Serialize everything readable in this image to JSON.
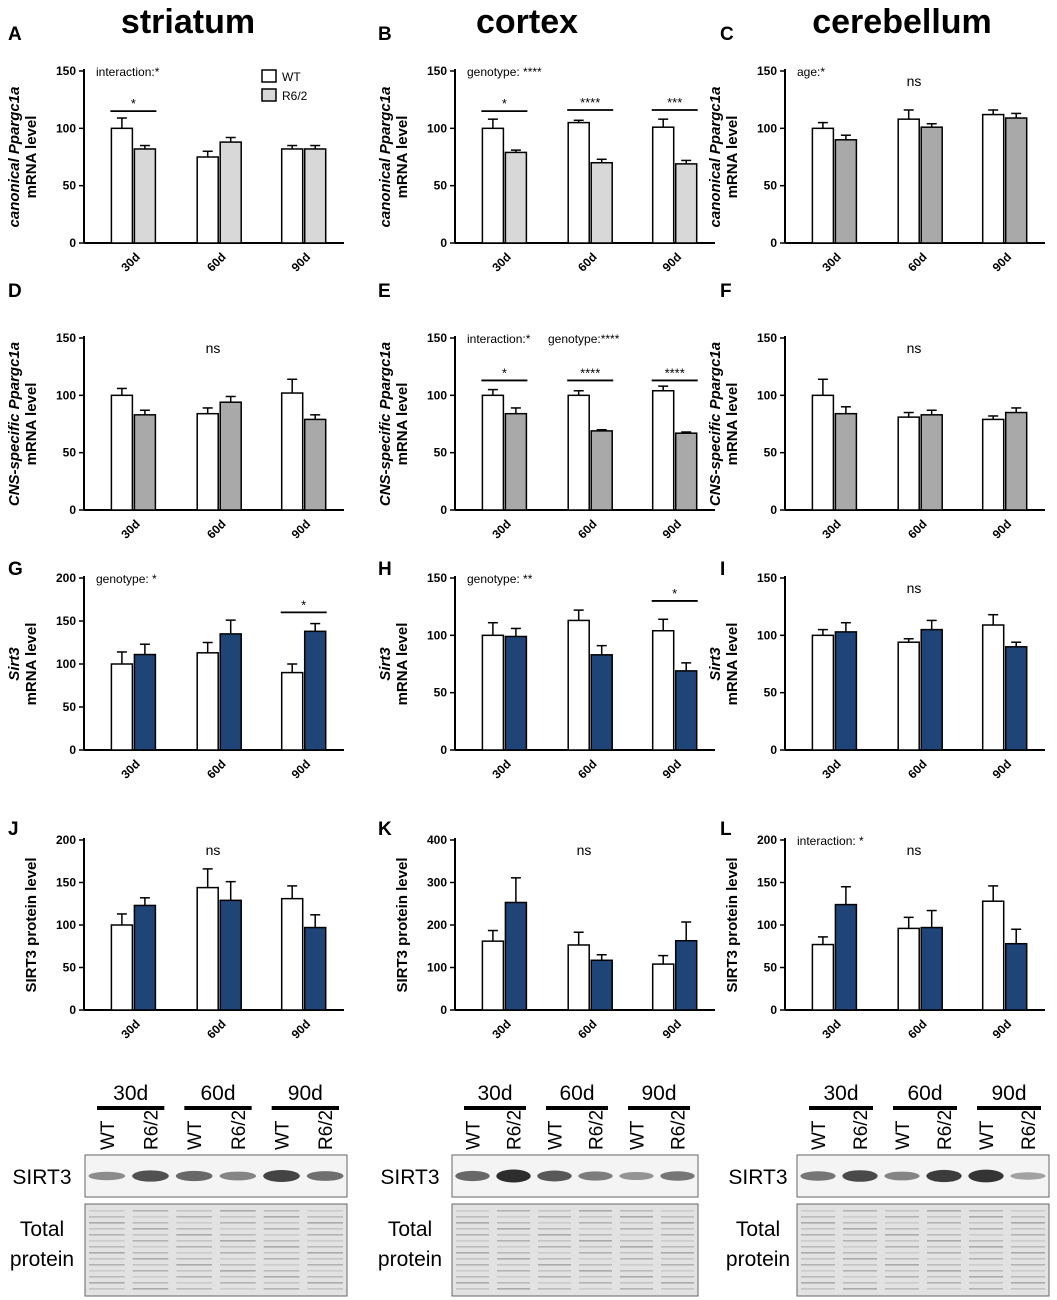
{
  "columns": [
    "striatum",
    "cortex",
    "cerebellum"
  ],
  "legend": {
    "wt": "WT",
    "mut": "R6/2"
  },
  "colors": {
    "wt": "#ffffff",
    "light": "#d8d8d8",
    "mid": "#a9a9a9",
    "blue": "#1f4478"
  },
  "chart_data": [
    {
      "id": "A",
      "type": "bar",
      "categories": [
        "30d",
        "60d",
        "90d"
      ],
      "ylabel_italic": "canonical Ppargc1a",
      "ylabel": "mRNA level",
      "ylim": [
        0,
        150
      ],
      "ticks": [
        0,
        50,
        100,
        150
      ],
      "mut_color": "light",
      "legend": true,
      "annotation": "interaction:*",
      "ns": "",
      "series": [
        {
          "name": "WT",
          "values": [
            100,
            75,
            82
          ],
          "errors": [
            9,
            5,
            3
          ]
        },
        {
          "name": "R6/2",
          "values": [
            82,
            88,
            82
          ],
          "errors": [
            3,
            4,
            3
          ]
        }
      ],
      "brackets": [
        {
          "group": 0,
          "y": 115,
          "label": "*"
        }
      ]
    },
    {
      "id": "B",
      "type": "bar",
      "categories": [
        "30d",
        "60d",
        "90d"
      ],
      "ylabel_italic": "canonical Ppargc1a",
      "ylabel": "mRNA level",
      "ylim": [
        0,
        150
      ],
      "ticks": [
        0,
        50,
        100,
        150
      ],
      "mut_color": "light",
      "legend": false,
      "annotation": "genotype: ****",
      "ns": "",
      "series": [
        {
          "name": "WT",
          "values": [
            100,
            105,
            101
          ],
          "errors": [
            8,
            2,
            7
          ]
        },
        {
          "name": "R6/2",
          "values": [
            79,
            70,
            69
          ],
          "errors": [
            2,
            3,
            3
          ]
        }
      ],
      "brackets": [
        {
          "group": 0,
          "y": 115,
          "label": "*"
        },
        {
          "group": 1,
          "y": 116,
          "label": "****"
        },
        {
          "group": 2,
          "y": 116,
          "label": "***"
        }
      ]
    },
    {
      "id": "C",
      "type": "bar",
      "categories": [
        "30d",
        "60d",
        "90d"
      ],
      "ylabel_italic": "canonical Ppargc1a",
      "ylabel": "mRNA level",
      "ylim": [
        0,
        150
      ],
      "ticks": [
        0,
        50,
        100,
        150
      ],
      "mut_color": "mid",
      "legend": false,
      "annotation": "age:*",
      "ns": "ns",
      "series": [
        {
          "name": "WT",
          "values": [
            100,
            108,
            112
          ],
          "errors": [
            5,
            8,
            4
          ]
        },
        {
          "name": "R6/2",
          "values": [
            90,
            101,
            109
          ],
          "errors": [
            4,
            3,
            4
          ]
        }
      ],
      "brackets": []
    },
    {
      "id": "D",
      "type": "bar",
      "categories": [
        "30d",
        "60d",
        "90d"
      ],
      "ylabel_italic": "CNS-specific Ppargc1a",
      "ylabel": "mRNA level",
      "ylim": [
        0,
        150
      ],
      "ticks": [
        0,
        50,
        100,
        150
      ],
      "mut_color": "mid",
      "legend": false,
      "annotation": "",
      "ns": "ns",
      "series": [
        {
          "name": "WT",
          "values": [
            100,
            84,
            102
          ],
          "errors": [
            6,
            5,
            12
          ]
        },
        {
          "name": "R6/2",
          "values": [
            83,
            94,
            79
          ],
          "errors": [
            4,
            5,
            4
          ]
        }
      ],
      "brackets": []
    },
    {
      "id": "E",
      "type": "bar",
      "categories": [
        "30d",
        "60d",
        "90d"
      ],
      "ylabel_italic": "CNS-specific Ppargc1a",
      "ylabel": "mRNA level",
      "ylim": [
        0,
        150
      ],
      "ticks": [
        0,
        50,
        100,
        150
      ],
      "mut_color": "mid",
      "legend": false,
      "annotation": "interaction:*",
      "annotation2": "genotype:****",
      "ns": "",
      "series": [
        {
          "name": "WT",
          "values": [
            100,
            100,
            104
          ],
          "errors": [
            5,
            4,
            4
          ]
        },
        {
          "name": "R6/2",
          "values": [
            84,
            69,
            67
          ],
          "errors": [
            5,
            1,
            1
          ]
        }
      ],
      "brackets": [
        {
          "group": 0,
          "y": 113,
          "label": "*"
        },
        {
          "group": 1,
          "y": 113,
          "label": "****"
        },
        {
          "group": 2,
          "y": 113,
          "label": "****"
        }
      ]
    },
    {
      "id": "F",
      "type": "bar",
      "categories": [
        "30d",
        "60d",
        "90d"
      ],
      "ylabel_italic": "CNS-specific Ppargc1a",
      "ylabel": "mRNA level",
      "ylim": [
        0,
        150
      ],
      "ticks": [
        0,
        50,
        100,
        150
      ],
      "mut_color": "mid",
      "legend": false,
      "annotation": "",
      "ns": "ns",
      "series": [
        {
          "name": "WT",
          "values": [
            100,
            81,
            79
          ],
          "errors": [
            14,
            4,
            3
          ]
        },
        {
          "name": "R6/2",
          "values": [
            84,
            83,
            85
          ],
          "errors": [
            6,
            4,
            4
          ]
        }
      ],
      "brackets": []
    },
    {
      "id": "G",
      "type": "bar",
      "categories": [
        "30d",
        "60d",
        "90d"
      ],
      "ylabel_italic": "Sirt3",
      "ylabel": "mRNA level",
      "ylim": [
        0,
        200
      ],
      "ticks": [
        0,
        50,
        100,
        150,
        200
      ],
      "mut_color": "blue",
      "legend": false,
      "annotation": "genotype: *",
      "ns": "",
      "series": [
        {
          "name": "WT",
          "values": [
            100,
            113,
            90
          ],
          "errors": [
            14,
            12,
            10
          ]
        },
        {
          "name": "R6/2",
          "values": [
            111,
            135,
            138
          ],
          "errors": [
            12,
            16,
            9
          ]
        }
      ],
      "brackets": [
        {
          "group": 2,
          "y": 160,
          "label": "*"
        }
      ]
    },
    {
      "id": "H",
      "type": "bar",
      "categories": [
        "30d",
        "60d",
        "90d"
      ],
      "ylabel_italic": "Sirt3",
      "ylabel": "mRNA level",
      "ylim": [
        0,
        150
      ],
      "ticks": [
        0,
        50,
        100,
        150
      ],
      "mut_color": "blue",
      "legend": false,
      "annotation": "genotype: **",
      "ns": "",
      "series": [
        {
          "name": "WT",
          "values": [
            100,
            113,
            104
          ],
          "errors": [
            11,
            9,
            10
          ]
        },
        {
          "name": "R6/2",
          "values": [
            99,
            83,
            69
          ],
          "errors": [
            7,
            8,
            7
          ]
        }
      ],
      "brackets": [
        {
          "group": 2,
          "y": 130,
          "label": "*"
        }
      ]
    },
    {
      "id": "I",
      "type": "bar",
      "categories": [
        "30d",
        "60d",
        "90d"
      ],
      "ylabel_italic": "Sirt3",
      "ylabel": "mRNA level",
      "ylim": [
        0,
        150
      ],
      "ticks": [
        0,
        50,
        100,
        150
      ],
      "mut_color": "blue",
      "legend": false,
      "annotation": "",
      "ns": "ns",
      "series": [
        {
          "name": "WT",
          "values": [
            100,
            94,
            109
          ],
          "errors": [
            5,
            3,
            9
          ]
        },
        {
          "name": "R6/2",
          "values": [
            103,
            105,
            90
          ],
          "errors": [
            8,
            8,
            4
          ]
        }
      ],
      "brackets": []
    },
    {
      "id": "J",
      "type": "bar",
      "categories": [
        "30d",
        "60d",
        "90d"
      ],
      "ylabel_italic": "",
      "ylabel": "SIRT3 protein level",
      "ylim": [
        0,
        200
      ],
      "ticks": [
        0,
        50,
        100,
        150,
        200
      ],
      "mut_color": "blue",
      "legend": false,
      "annotation": "",
      "ns": "ns",
      "series": [
        {
          "name": "WT",
          "values": [
            100,
            144,
            131
          ],
          "errors": [
            13,
            22,
            15
          ]
        },
        {
          "name": "R6/2",
          "values": [
            123,
            129,
            97
          ],
          "errors": [
            9,
            22,
            15
          ]
        }
      ],
      "brackets": []
    },
    {
      "id": "K",
      "type": "bar",
      "categories": [
        "30d",
        "60d",
        "90d"
      ],
      "ylabel_italic": "",
      "ylabel": "SIRT3 protein level",
      "ylim": [
        0,
        400
      ],
      "ticks": [
        0,
        100,
        200,
        300,
        400
      ],
      "mut_color": "blue",
      "legend": false,
      "annotation": "",
      "ns": "ns",
      "series": [
        {
          "name": "WT",
          "values": [
            162,
            153,
            108
          ],
          "errors": [
            25,
            30,
            20
          ]
        },
        {
          "name": "R6/2",
          "values": [
            253,
            117,
            163
          ],
          "errors": [
            58,
            13,
            44
          ]
        }
      ],
      "brackets": []
    },
    {
      "id": "L",
      "type": "bar",
      "categories": [
        "30d",
        "60d",
        "90d"
      ],
      "ylabel_italic": "",
      "ylabel": "SIRT3 protein level",
      "ylim": [
        0,
        200
      ],
      "ticks": [
        0,
        50,
        100,
        150,
        200
      ],
      "mut_color": "blue",
      "legend": false,
      "annotation": "interaction: *",
      "ns": "ns",
      "series": [
        {
          "name": "WT",
          "values": [
            77,
            96,
            128
          ],
          "errors": [
            9,
            13,
            18
          ]
        },
        {
          "name": "R6/2",
          "values": [
            124,
            97,
            78
          ],
          "errors": [
            21,
            20,
            17
          ]
        }
      ],
      "brackets": []
    }
  ],
  "blots": {
    "ages": [
      "30d",
      "60d",
      "90d"
    ],
    "lanes": [
      "WT",
      "R6/2",
      "WT",
      "R6/2",
      "WT",
      "R6/2"
    ],
    "row1": "SIRT3",
    "row2a": "Total",
    "row2b": "protein",
    "intensities": [
      [
        0.35,
        0.75,
        0.6,
        0.4,
        0.85,
        0.55
      ],
      [
        0.6,
        1.0,
        0.7,
        0.45,
        0.3,
        0.5
      ],
      [
        0.5,
        0.8,
        0.4,
        0.9,
        0.95,
        0.2
      ]
    ]
  }
}
